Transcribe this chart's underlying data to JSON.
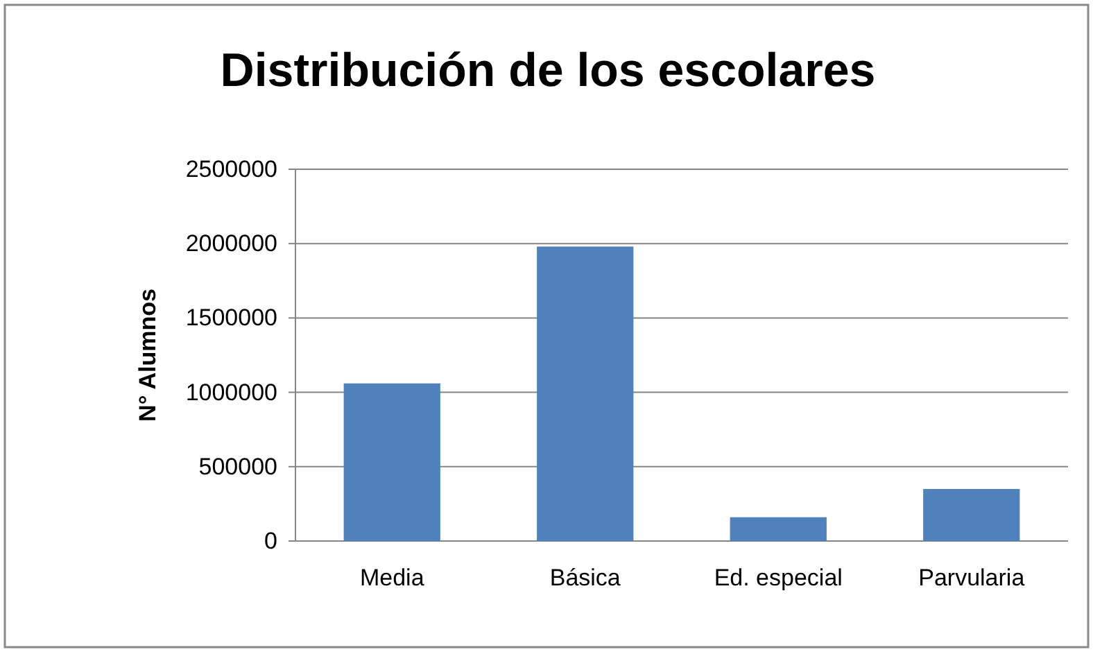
{
  "chart_data": {
    "type": "bar",
    "title": "Distribución de los escolares",
    "ylabel": "N° Alumnos",
    "categories": [
      "Media",
      "Básica",
      "Ed. especial",
      "Parvularia"
    ],
    "values": [
      1060000,
      1980000,
      160000,
      350000
    ],
    "color": "#4f81bd",
    "ylim": [
      0,
      2500000
    ],
    "yticks": [
      0,
      500000,
      1000000,
      1500000,
      2000000,
      2500000
    ],
    "grid": "y"
  }
}
